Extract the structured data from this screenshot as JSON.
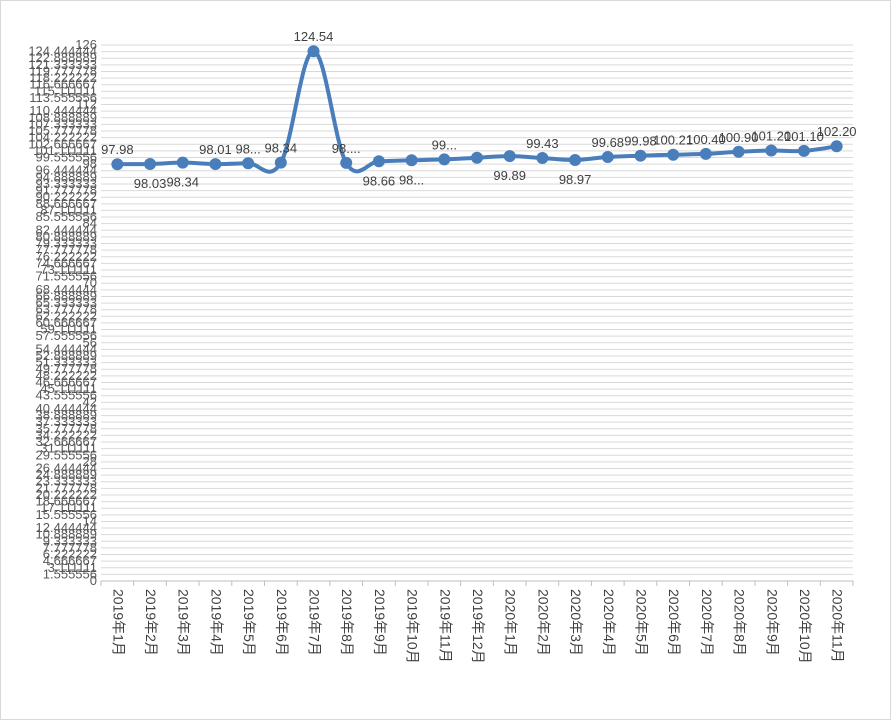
{
  "colors": {
    "series": "#4a7ebb",
    "grid": "#d9d9d9",
    "axis": "#bfbfbf"
  },
  "chart_data": {
    "type": "line",
    "title": "",
    "xlabel": "",
    "ylabel": "",
    "ylim": [
      0,
      126
    ],
    "grid": true,
    "legend": "none",
    "smooth": true,
    "ytick_labels": [
      "0",
      "1.555556",
      "3.111111",
      "4.666667",
      "6.222222",
      "7.777778",
      "9.333333",
      "10.888889",
      "12.444444",
      "14",
      "15.555556",
      "17.111111",
      "18.666667",
      "20.222222",
      "21.777778",
      "23.333333",
      "24.888889",
      "26.444444",
      "28",
      "29.555556",
      "31.111111",
      "32.666667",
      "34.222222",
      "35.777778",
      "37.333333",
      "38.888889",
      "40.444444",
      "42",
      "43.555556",
      "45.111111",
      "46.666667",
      "48.222222",
      "49.777778",
      "51.333333",
      "52.888889",
      "54.444444",
      "56",
      "57.555556",
      "59.111111",
      "60.666667",
      "62.222222",
      "63.777778",
      "65.333333",
      "66.888889",
      "68.444444",
      "70",
      "71.555556",
      "73.111111",
      "74.666667",
      "76.222222",
      "77.777778",
      "79.333333",
      "80.888889",
      "82.444444",
      "84",
      "85.555556",
      "87.111111",
      "88.666667",
      "90.222222",
      "91.777778",
      "93.333333",
      "94.888889",
      "96.444444",
      "98",
      "99.555556",
      "101.111111",
      "102.666667",
      "104.222222",
      "105.777778",
      "107.333333",
      "108.888889",
      "110.444444",
      "112",
      "113.555556",
      "115.111111",
      "116.666667",
      "118.222222",
      "119.777778",
      "121.333333",
      "122.888889",
      "124.444444",
      "126"
    ],
    "categories": [
      "2019年1月",
      "2019年2月",
      "2019年3月",
      "2019年4月",
      "2019年5月",
      "2019年6月",
      "2019年7月",
      "2019年8月",
      "2019年9月",
      "2019年10月",
      "2019年11月",
      "2019年12月",
      "2020年1月",
      "2020年2月",
      "2020年3月",
      "2020年4月",
      "2020年5月",
      "2020年6月",
      "2020年7月",
      "2020年8月",
      "2020年9月",
      "2020年10月",
      "2020年11月"
    ],
    "series": [
      {
        "values": [
          97.98,
          98.03,
          98.34,
          98.01,
          98.2,
          98.34,
          124.54,
          98.3,
          98.66,
          98.9,
          99.1,
          99.5,
          99.89,
          99.43,
          98.97,
          99.68,
          99.98,
          100.21,
          100.4,
          100.9,
          101.2,
          101.1,
          102.2
        ]
      }
    ],
    "data_labels": [
      "97.98",
      "98.03",
      "98.34",
      "98.01",
      "98...",
      "98.34",
      "124.54",
      "98....",
      "98.66",
      "98...",
      "99...",
      "",
      "99.89",
      "99.43",
      "98.97",
      "99.68",
      "99.98",
      "100.21",
      "100.40",
      "100.90",
      "101.20",
      "101.10",
      "102.20"
    ]
  }
}
